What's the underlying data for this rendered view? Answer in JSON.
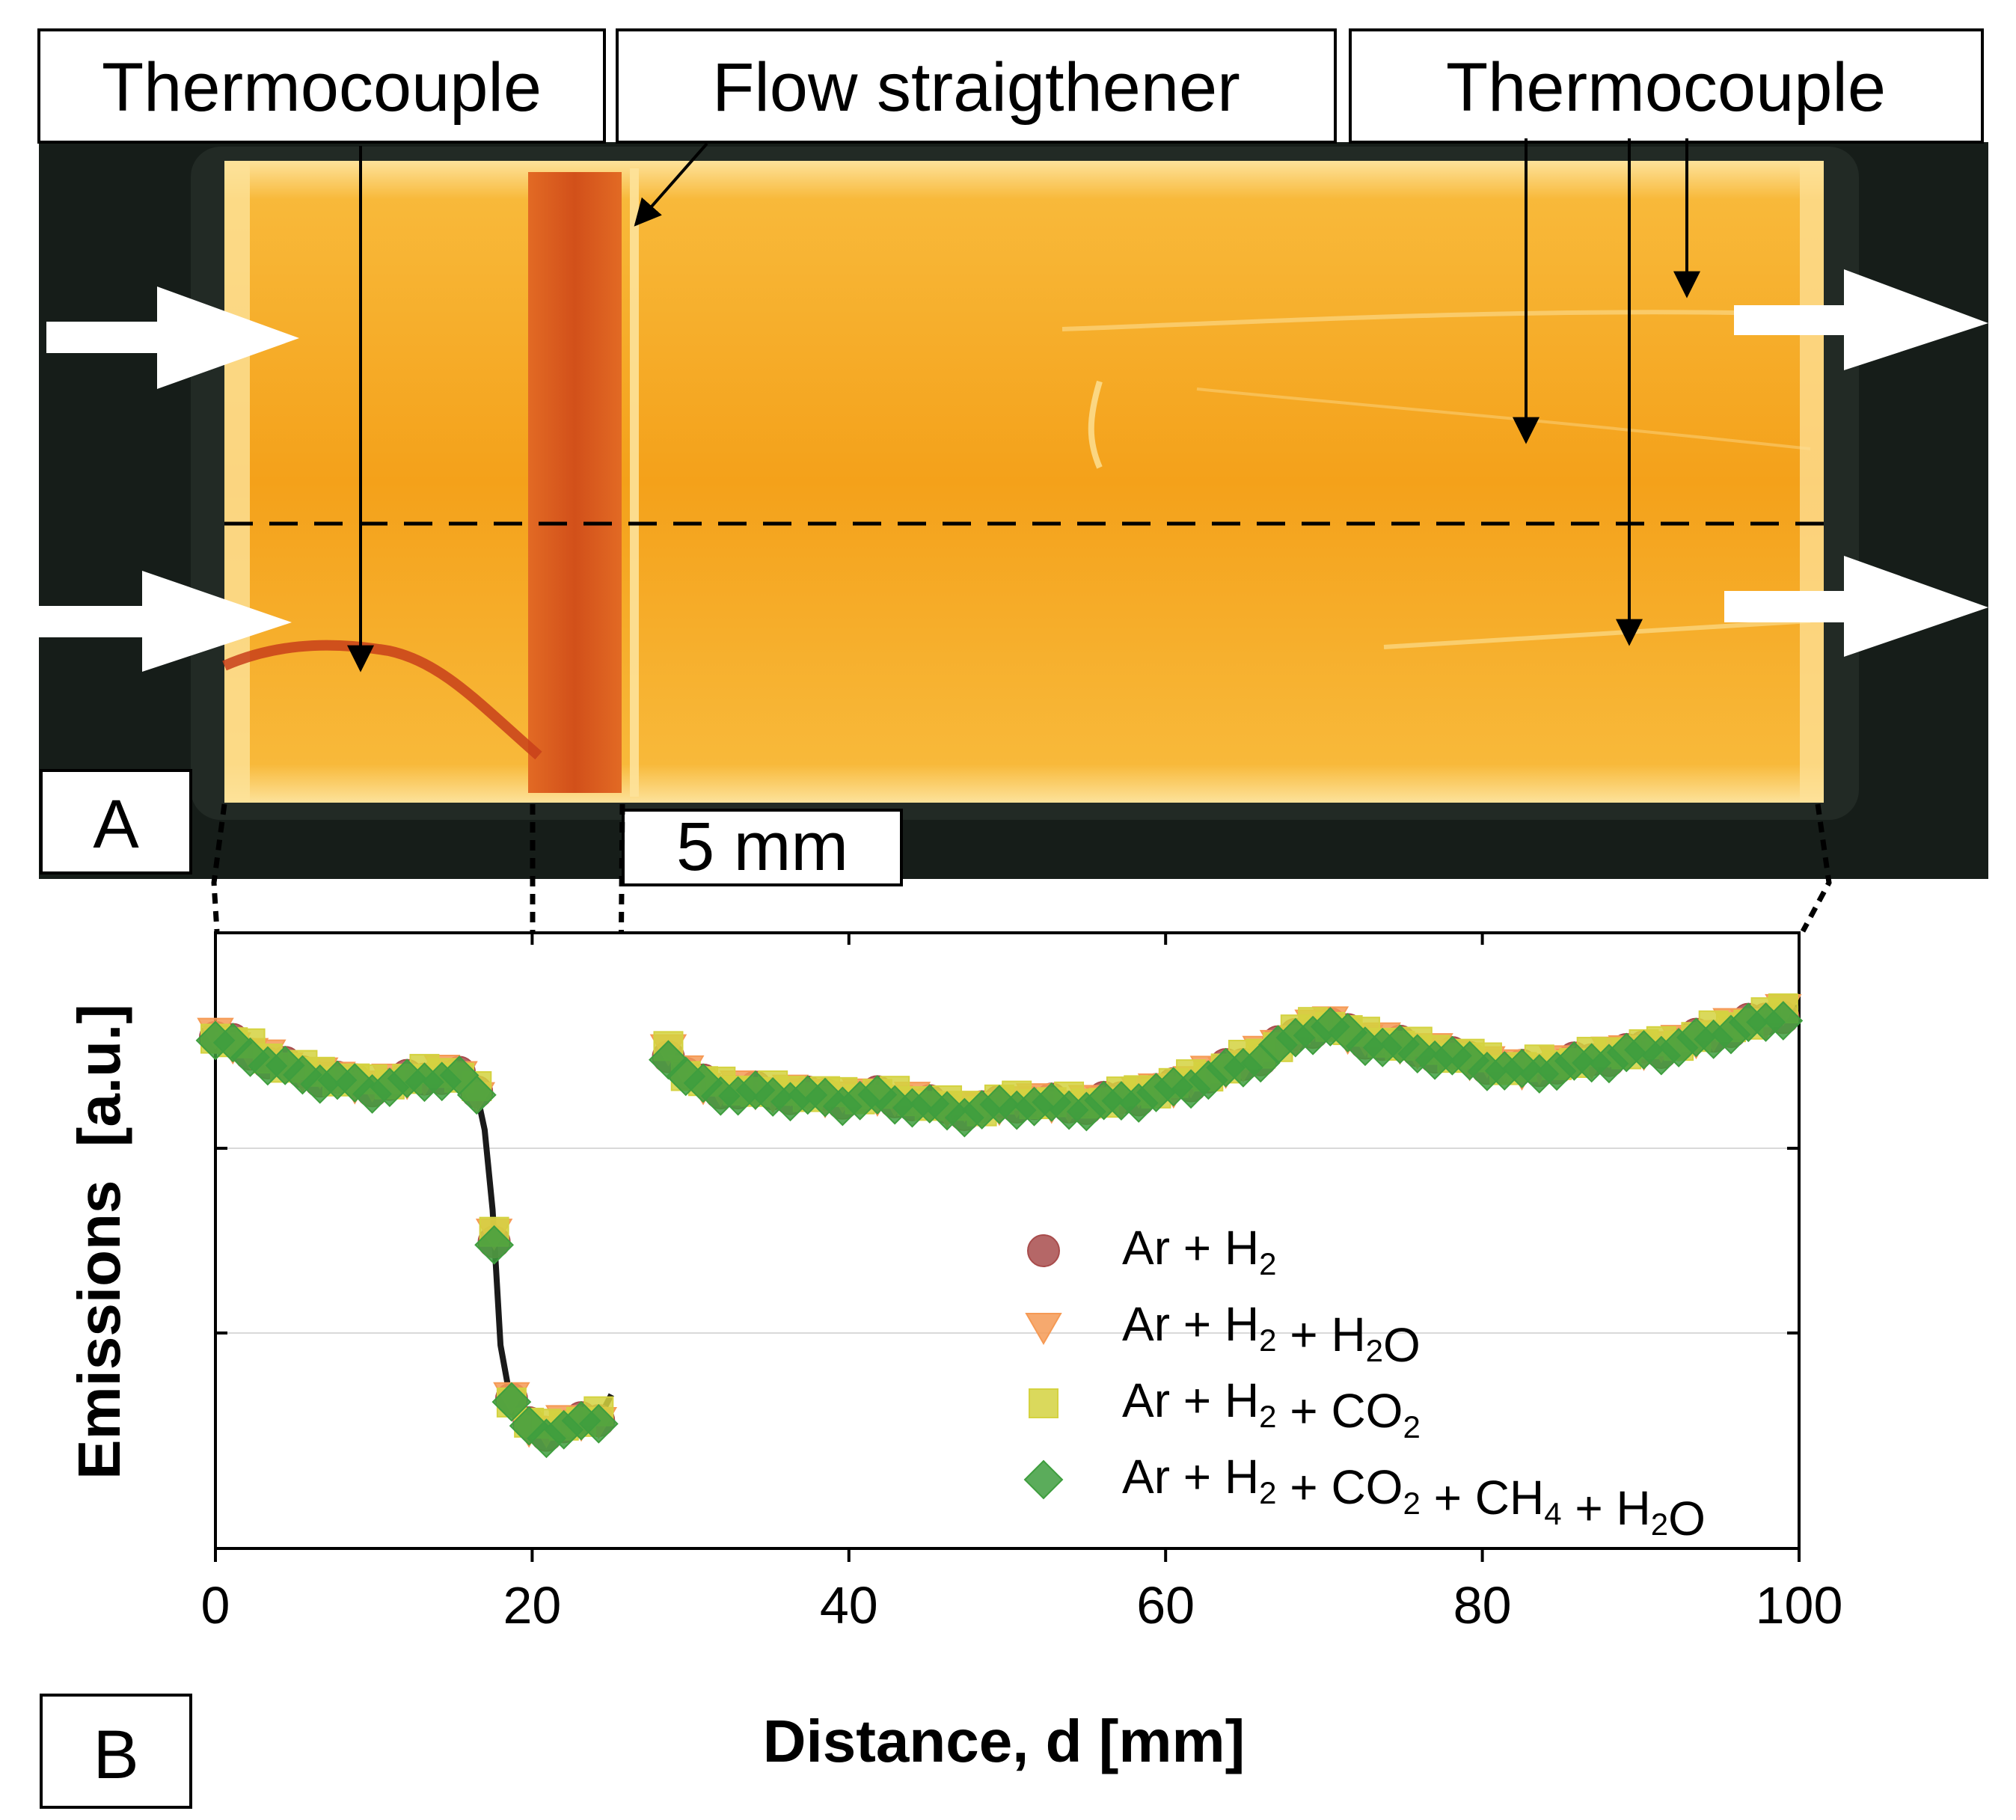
{
  "panel_a": {
    "labels": {
      "thermocouple_left": "Thermocouple",
      "flow_straightener": "Flow straigthener",
      "thermocouple_right": "Thermocouple",
      "scale_bar": "5 mm",
      "panel": "A"
    },
    "colors": {
      "background": "#161d19",
      "channel": "#f4a11a",
      "channel_edge": "#fde29a",
      "straightener": "#db5a1c",
      "thermocouple_wire": "#c8401a"
    }
  },
  "panel_b": {
    "panel_label": "B"
  },
  "chart_data": {
    "type": "scatter",
    "xlabel": "Distance, d [mm]",
    "ylabel": "Emissions  [a.u.]",
    "xlim": [
      0,
      100
    ],
    "ylim": [
      0,
      10
    ],
    "xticks": [
      0,
      20,
      40,
      60,
      80,
      100
    ],
    "xtick_labels": [
      "0",
      "20",
      "40",
      "60",
      "80",
      "100"
    ],
    "yticks": [
      3.5,
      6.5
    ],
    "ytick_labels": [],
    "grid": "horizontal at y ticks",
    "legend_position": "lower-right",
    "legend": [
      {
        "name": "Ar + H",
        "sub": "2",
        "rest": ""
      },
      {
        "name": "Ar + H",
        "sub": "2",
        "rest": " + H",
        "sub2": "2",
        "rest2": "O"
      },
      {
        "name": "Ar + H",
        "sub": "2",
        "rest": " + CO",
        "sub2": "2",
        "rest2": ""
      },
      {
        "name": "Ar + H",
        "sub": "2",
        "rest": " + CO",
        "sub2": "2",
        "rest2": " + CH",
        "sub3": "4",
        "rest3": " + H",
        "sub4": "2",
        "rest4": "O"
      }
    ],
    "colors": [
      "#a84c4c",
      "#f59a55",
      "#d4d240",
      "#3e9e3e"
    ],
    "base_profile": {
      "x": [
        0,
        2,
        4,
        6,
        8,
        10,
        12,
        14,
        16,
        16.5,
        17,
        17.5,
        18,
        18.5,
        19,
        20,
        21,
        22,
        23,
        24,
        25,
        28.5,
        30,
        32,
        35,
        38,
        40,
        42,
        45,
        48,
        50,
        55,
        57,
        60,
        63,
        66,
        68,
        70,
        72,
        75,
        78,
        80,
        82,
        83,
        85,
        88,
        90,
        92,
        95,
        98,
        100
      ],
      "y": [
        8.3,
        8.1,
        7.85,
        7.7,
        7.6,
        7.5,
        7.6,
        7.7,
        7.65,
        7.4,
        6.8,
        5.5,
        3.3,
        2.6,
        2.1,
        1.95,
        1.9,
        2.0,
        2.05,
        2.0,
        2.5,
        8.1,
        7.6,
        7.45,
        7.4,
        7.35,
        7.3,
        7.35,
        7.2,
        7.1,
        7.25,
        7.2,
        7.3,
        7.45,
        7.7,
        8.0,
        8.3,
        8.55,
        8.3,
        8.15,
        8.0,
        7.9,
        7.75,
        7.8,
        7.85,
        8.0,
        8.1,
        8.15,
        8.4,
        8.6,
        8.8
      ]
    },
    "series": [
      {
        "name": "Ar + H2",
        "marker": "circle",
        "offset": 0.0
      },
      {
        "name": "Ar + H2 + H2O",
        "marker": "triangle-down",
        "offset": 0.02
      },
      {
        "name": "Ar + H2 + CO2",
        "marker": "square",
        "offset": 0.05
      },
      {
        "name": "Ar + H2 + CO2 + CH4 + H2O",
        "marker": "diamond",
        "offset": -0.05
      }
    ]
  }
}
